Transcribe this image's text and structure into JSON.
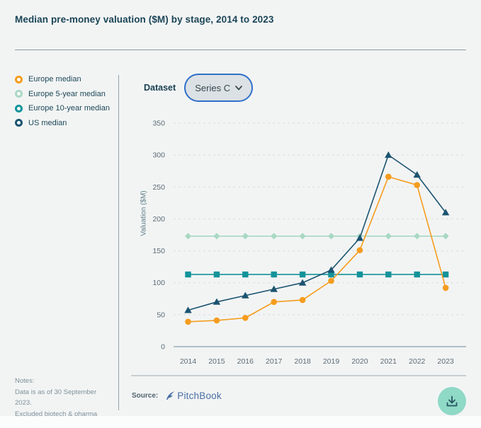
{
  "title": "Median pre-money valuation ($M) by stage, 2014 to 2023",
  "legend": {
    "items": [
      {
        "label": "Europe median",
        "color": "#F59C1E"
      },
      {
        "label": "Europe 5-year median",
        "color": "#A8D8C3"
      },
      {
        "label": "Europe 10-year median",
        "color": "#12939A"
      },
      {
        "label": "US median",
        "color": "#1B5470"
      }
    ]
  },
  "dataset_control": {
    "label": "Dataset",
    "selected_option": "Series C",
    "chevron_icon": "chevron-down-icon"
  },
  "chart_data": {
    "type": "line",
    "title": "Median pre-money valuation ($M) by stage, 2014 to 2023",
    "x": [
      "2014",
      "2015",
      "2016",
      "2017",
      "2018",
      "2019",
      "2020",
      "2021",
      "2022",
      "2023"
    ],
    "ylabel": "Valuation ($M)",
    "ylim": [
      0,
      350
    ],
    "yticks": [
      0,
      50,
      100,
      150,
      200,
      250,
      300,
      350
    ],
    "grid": "horizontal-dashed",
    "legend_position": "left",
    "series": [
      {
        "name": "Europe median",
        "marker": "circle",
        "color": "#F59C1E",
        "values": [
          39,
          41,
          45,
          70,
          73,
          103,
          151,
          266,
          253,
          92
        ]
      },
      {
        "name": "Europe 5-year median",
        "marker": "diamond",
        "color": "#A8D8C3",
        "values": [
          173,
          173,
          173,
          173,
          173,
          173,
          173,
          173,
          173,
          173
        ]
      },
      {
        "name": "Europe 10-year median",
        "marker": "square",
        "color": "#12939A",
        "values": [
          113,
          113,
          113,
          113,
          113,
          113,
          113,
          113,
          113,
          113
        ]
      },
      {
        "name": "US median",
        "marker": "triangle",
        "color": "#1B5470",
        "values": [
          57,
          70,
          80,
          90,
          100,
          120,
          170,
          300,
          269,
          210
        ]
      }
    ]
  },
  "notes": {
    "heading": "Notes:",
    "line1": "Data is as of 30 September 2023.",
    "line2": "Excluded biotech & pharma firms."
  },
  "source": {
    "label": "Source:",
    "brand": "PitchBook"
  },
  "download": {
    "icon": "download-icon",
    "background_color": "#8FD9C7"
  },
  "colors": {
    "card_background": "#F2F4F4",
    "title_text": "#1B4557",
    "axis_text": "#5C6C75",
    "gridline": "#D7DBDE",
    "baseline": "#8C9DA6",
    "pill_border": "#2F70CA",
    "pill_background": "#DCE1E5"
  }
}
